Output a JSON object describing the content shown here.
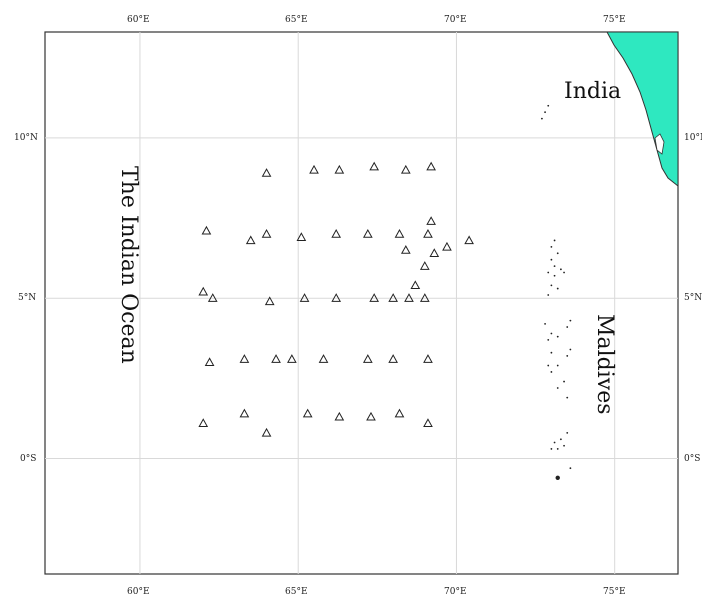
{
  "labels": {
    "india": "India",
    "ocean": "The Indian Ocean",
    "maldives": "Maldives"
  },
  "axes": {
    "lon_ticks": [
      "60°E",
      "65°E",
      "70°E",
      "75°E"
    ],
    "lat_ticks": [
      "10°N",
      "5°N",
      "0°S"
    ],
    "lon_range": [
      57.0,
      77.0
    ],
    "lat_range": [
      -3.6,
      13.3
    ]
  },
  "colors": {
    "land": "#2ee8c0",
    "grid": "#d9d9d9",
    "frame": "#333333"
  },
  "stations": [
    {
      "lon": 64.0,
      "lat": 8.9
    },
    {
      "lon": 65.5,
      "lat": 9.0
    },
    {
      "lon": 66.3,
      "lat": 9.0
    },
    {
      "lon": 67.4,
      "lat": 9.1
    },
    {
      "lon": 68.4,
      "lat": 9.0
    },
    {
      "lon": 69.2,
      "lat": 9.1
    },
    {
      "lon": 62.1,
      "lat": 7.1
    },
    {
      "lon": 63.5,
      "lat": 6.8
    },
    {
      "lon": 64.0,
      "lat": 7.0
    },
    {
      "lon": 65.1,
      "lat": 6.9
    },
    {
      "lon": 66.2,
      "lat": 7.0
    },
    {
      "lon": 67.2,
      "lat": 7.0
    },
    {
      "lon": 68.2,
      "lat": 7.0
    },
    {
      "lon": 68.4,
      "lat": 6.5
    },
    {
      "lon": 69.1,
      "lat": 7.0
    },
    {
      "lon": 69.2,
      "lat": 7.4
    },
    {
      "lon": 69.7,
      "lat": 6.6
    },
    {
      "lon": 70.4,
      "lat": 6.8
    },
    {
      "lon": 69.3,
      "lat": 6.4
    },
    {
      "lon": 69.0,
      "lat": 6.0
    },
    {
      "lon": 68.7,
      "lat": 5.4
    },
    {
      "lon": 62.0,
      "lat": 5.2
    },
    {
      "lon": 62.3,
      "lat": 5.0
    },
    {
      "lon": 64.1,
      "lat": 4.9
    },
    {
      "lon": 65.2,
      "lat": 5.0
    },
    {
      "lon": 66.2,
      "lat": 5.0
    },
    {
      "lon": 67.4,
      "lat": 5.0
    },
    {
      "lon": 68.0,
      "lat": 5.0
    },
    {
      "lon": 68.5,
      "lat": 5.0
    },
    {
      "lon": 69.0,
      "lat": 5.0
    },
    {
      "lon": 62.2,
      "lat": 3.0
    },
    {
      "lon": 63.3,
      "lat": 3.1
    },
    {
      "lon": 64.3,
      "lat": 3.1
    },
    {
      "lon": 64.8,
      "lat": 3.1
    },
    {
      "lon": 65.8,
      "lat": 3.1
    },
    {
      "lon": 67.2,
      "lat": 3.1
    },
    {
      "lon": 68.0,
      "lat": 3.1
    },
    {
      "lon": 69.1,
      "lat": 3.1
    },
    {
      "lon": 62.0,
      "lat": 1.1
    },
    {
      "lon": 63.3,
      "lat": 1.4
    },
    {
      "lon": 64.0,
      "lat": 0.8
    },
    {
      "lon": 65.3,
      "lat": 1.4
    },
    {
      "lon": 66.3,
      "lat": 1.3
    },
    {
      "lon": 67.3,
      "lat": 1.3
    },
    {
      "lon": 68.2,
      "lat": 1.4
    },
    {
      "lon": 69.1,
      "lat": 1.1
    }
  ],
  "islands": [
    {
      "lon": 72.9,
      "lat": 11.0
    },
    {
      "lon": 72.8,
      "lat": 10.8
    },
    {
      "lon": 72.7,
      "lat": 10.6
    },
    {
      "lon": 73.1,
      "lat": 6.8
    },
    {
      "lon": 73.0,
      "lat": 6.6
    },
    {
      "lon": 73.2,
      "lat": 6.4
    },
    {
      "lon": 73.0,
      "lat": 6.2
    },
    {
      "lon": 73.1,
      "lat": 6.0
    },
    {
      "lon": 73.3,
      "lat": 5.9
    },
    {
      "lon": 72.9,
      "lat": 5.8
    },
    {
      "lon": 73.1,
      "lat": 5.7
    },
    {
      "lon": 73.4,
      "lat": 5.8
    },
    {
      "lon": 73.0,
      "lat": 5.4
    },
    {
      "lon": 73.2,
      "lat": 5.3
    },
    {
      "lon": 72.9,
      "lat": 5.1
    },
    {
      "lon": 73.6,
      "lat": 4.3
    },
    {
      "lon": 73.5,
      "lat": 4.1
    },
    {
      "lon": 72.8,
      "lat": 4.2
    },
    {
      "lon": 73.0,
      "lat": 3.9
    },
    {
      "lon": 72.9,
      "lat": 3.7
    },
    {
      "lon": 73.2,
      "lat": 3.8
    },
    {
      "lon": 73.6,
      "lat": 3.4
    },
    {
      "lon": 73.5,
      "lat": 3.2
    },
    {
      "lon": 73.0,
      "lat": 3.3
    },
    {
      "lon": 72.9,
      "lat": 2.9
    },
    {
      "lon": 73.2,
      "lat": 2.9
    },
    {
      "lon": 73.0,
      "lat": 2.7
    },
    {
      "lon": 73.4,
      "lat": 2.4
    },
    {
      "lon": 73.2,
      "lat": 2.2
    },
    {
      "lon": 73.5,
      "lat": 1.9
    },
    {
      "lon": 73.5,
      "lat": 0.8
    },
    {
      "lon": 73.3,
      "lat": 0.6
    },
    {
      "lon": 73.1,
      "lat": 0.5
    },
    {
      "lon": 73.4,
      "lat": 0.4
    },
    {
      "lon": 73.2,
      "lat": 0.3
    },
    {
      "lon": 73.0,
      "lat": 0.3
    },
    {
      "lon": 73.6,
      "lat": -0.3
    },
    {
      "lon": 73.2,
      "lat": -0.6
    }
  ]
}
